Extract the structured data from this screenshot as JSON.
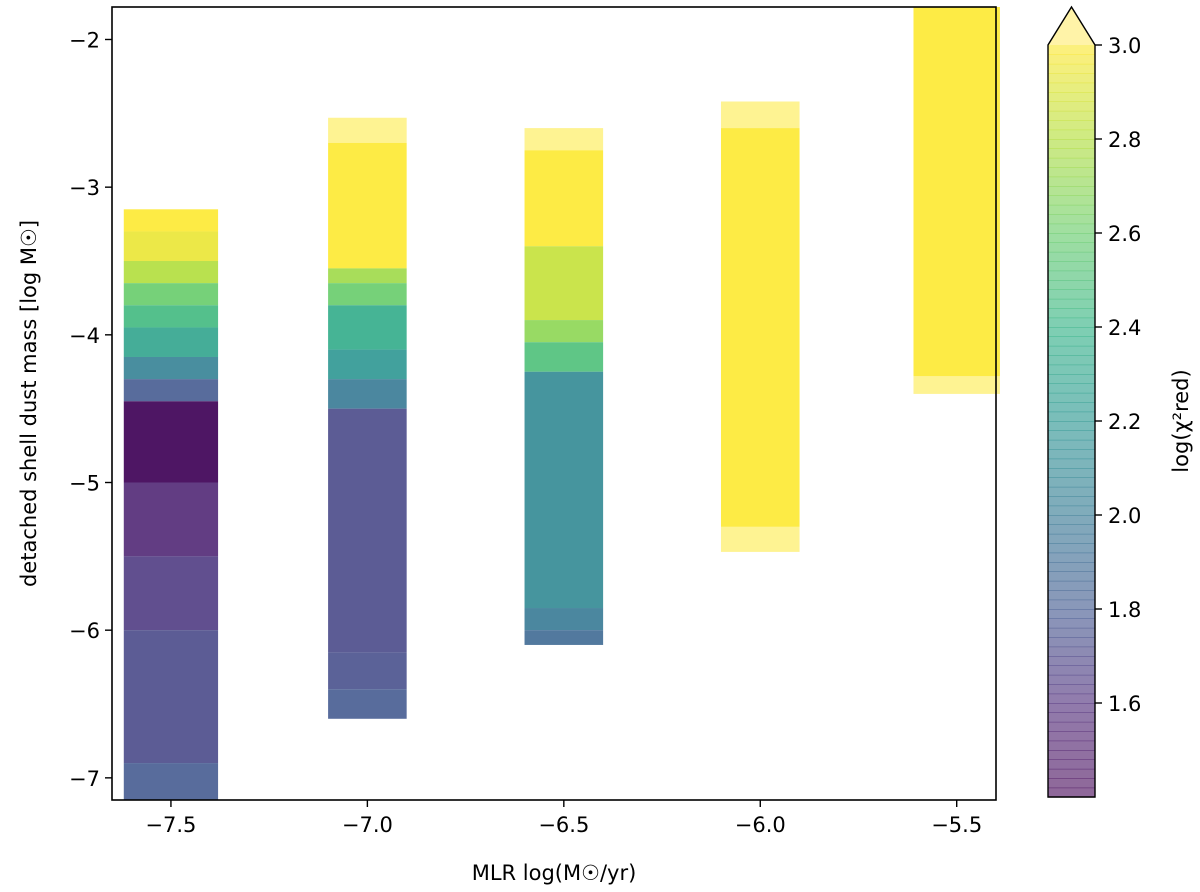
{
  "chart_data": {
    "type": "heatmap",
    "title": "",
    "xlabel": "MLR log(M☉/yr)",
    "ylabel": "detached shell dust mass [log M☉]",
    "colorbar_label": "log(χ²red)",
    "xlim": [
      -7.65,
      -5.4
    ],
    "ylim": [
      -7.15,
      -1.78
    ],
    "x_ticks": [
      "-7.5",
      "-7.0",
      "-6.5",
      "-6.0",
      "-5.5"
    ],
    "x_tick_values": [
      -7.5,
      -7.0,
      -6.5,
      -6.0,
      -5.5
    ],
    "y_ticks": [
      "-7",
      "-6",
      "-5",
      "-4",
      "-3",
      "-2"
    ],
    "y_tick_values": [
      -7,
      -6,
      -5,
      -4,
      -3,
      -2
    ],
    "colorbar": {
      "colormap": "viridis",
      "range": [
        1.4,
        3.05
      ],
      "ticks": [
        "1.6",
        "1.8",
        "2.0",
        "2.2",
        "2.4",
        "2.6",
        "2.8",
        "3.0"
      ],
      "tick_values": [
        1.6,
        1.8,
        2.0,
        2.2,
        2.4,
        2.6,
        2.8,
        3.0
      ],
      "extend": "max"
    },
    "columns": [
      {
        "mlr": -7.5,
        "half_width": 0.12,
        "segments": [
          {
            "y0": -3.15,
            "y1": -3.3,
            "value": 3.0
          },
          {
            "y0": -3.3,
            "y1": -3.5,
            "value": 2.95
          },
          {
            "y0": -3.5,
            "y1": -3.65,
            "value": 2.8
          },
          {
            "y0": -3.65,
            "y1": -3.8,
            "value": 2.6
          },
          {
            "y0": -3.8,
            "y1": -3.95,
            "value": 2.45
          },
          {
            "y0": -3.95,
            "y1": -4.15,
            "value": 2.3
          },
          {
            "y0": -4.15,
            "y1": -4.3,
            "value": 2.05
          },
          {
            "y0": -4.3,
            "y1": -4.45,
            "value": 1.8
          },
          {
            "y0": -4.45,
            "y1": -5.0,
            "value": 1.45
          },
          {
            "y0": -5.0,
            "y1": -5.5,
            "value": 1.55
          },
          {
            "y0": -5.5,
            "y1": -6.0,
            "value": 1.65
          },
          {
            "y0": -6.0,
            "y1": -6.9,
            "value": 1.72
          },
          {
            "y0": -6.9,
            "y1": -7.15,
            "value": 1.8
          }
        ]
      },
      {
        "mlr": -7.0,
        "half_width": 0.1,
        "segments": [
          {
            "y0": -2.53,
            "y1": -2.7,
            "value": 3.05
          },
          {
            "y0": -2.7,
            "y1": -3.55,
            "value": 3.0
          },
          {
            "y0": -3.55,
            "y1": -3.65,
            "value": 2.75
          },
          {
            "y0": -3.65,
            "y1": -3.8,
            "value": 2.6
          },
          {
            "y0": -3.8,
            "y1": -4.1,
            "value": 2.35
          },
          {
            "y0": -4.1,
            "y1": -4.3,
            "value": 2.2
          },
          {
            "y0": -4.3,
            "y1": -4.5,
            "value": 2.0
          },
          {
            "y0": -4.5,
            "y1": -6.15,
            "value": 1.72
          },
          {
            "y0": -6.15,
            "y1": -6.4,
            "value": 1.75
          },
          {
            "y0": -6.4,
            "y1": -6.6,
            "value": 1.8
          }
        ]
      },
      {
        "mlr": -6.5,
        "half_width": 0.1,
        "segments": [
          {
            "y0": -2.6,
            "y1": -2.75,
            "value": 3.05
          },
          {
            "y0": -2.75,
            "y1": -3.4,
            "value": 3.0
          },
          {
            "y0": -3.4,
            "y1": -3.9,
            "value": 2.85
          },
          {
            "y0": -3.9,
            "y1": -4.05,
            "value": 2.7
          },
          {
            "y0": -4.05,
            "y1": -4.25,
            "value": 2.5
          },
          {
            "y0": -4.25,
            "y1": -5.85,
            "value": 2.1
          },
          {
            "y0": -5.85,
            "y1": -6.0,
            "value": 2.0
          },
          {
            "y0": -6.0,
            "y1": -6.1,
            "value": 1.9
          }
        ]
      },
      {
        "mlr": -6.0,
        "half_width": 0.1,
        "segments": [
          {
            "y0": -2.42,
            "y1": -2.6,
            "value": 3.05
          },
          {
            "y0": -2.6,
            "y1": -5.3,
            "value": 3.0
          },
          {
            "y0": -5.3,
            "y1": -5.47,
            "value": 3.05
          }
        ]
      },
      {
        "mlr": -5.5,
        "half_width": 0.11,
        "segments": [
          {
            "y0": -1.78,
            "y1": -4.28,
            "value": 3.0
          },
          {
            "y0": -4.28,
            "y1": -4.4,
            "value": 3.05
          }
        ]
      }
    ]
  }
}
